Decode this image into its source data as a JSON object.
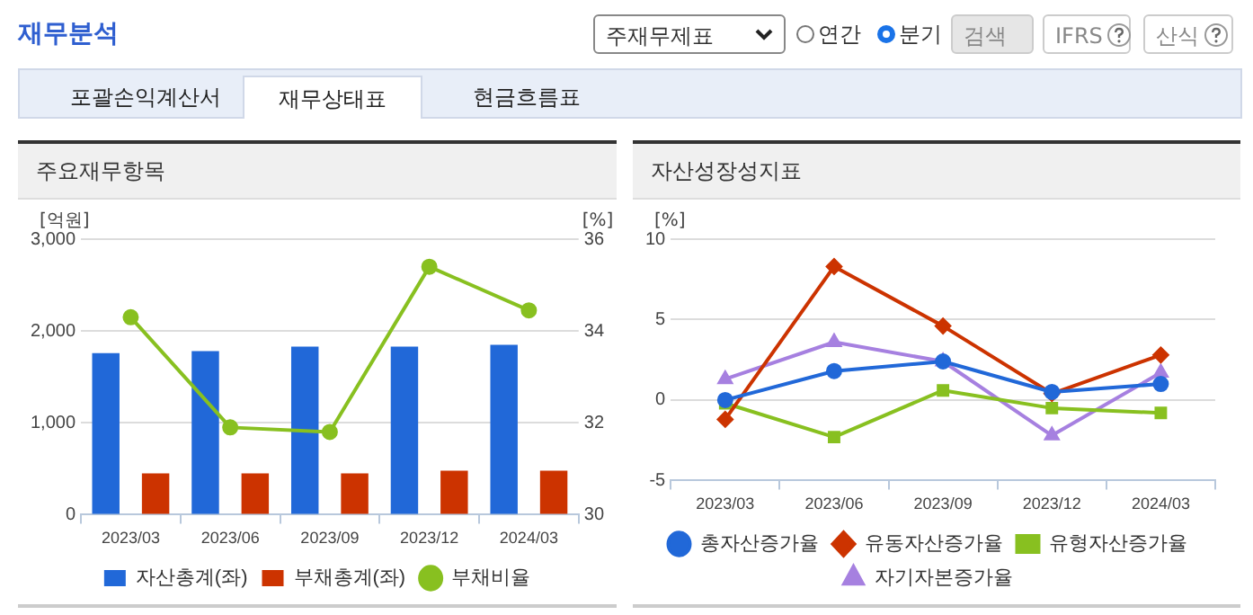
{
  "chart_data": [
    {
      "type": "other",
      "title": "재무분석",
      "annotations": [
        "주재무제표",
        "연간",
        "분기",
        "검색",
        "IFRS",
        "산식",
        "포괄손익계산서",
        "재무상태표",
        "현금흐름표"
      ]
    },
    {
      "type": "bar",
      "title": "주요재무항목",
      "ylabel": "[억원]",
      "y2label": "[%]",
      "categories": [
        "2023/03",
        "2023/06",
        "2023/09",
        "2023/12",
        "2024/03"
      ],
      "series": [
        {
          "name": "자산총계(좌)",
          "color": "#2168d8",
          "values": [
            1760,
            1780,
            1830,
            1830,
            1850
          ]
        },
        {
          "name": "부채총계(좌)",
          "color": "#cc3300",
          "values": [
            450,
            450,
            450,
            480,
            480
          ]
        },
        {
          "name": "부채비율",
          "type": "line",
          "axis": "y2",
          "marker": "circle",
          "color": "#88c020",
          "values": [
            34.3,
            31.9,
            31.8,
            35.4,
            34.45
          ]
        }
      ],
      "ylim": [
        0,
        3000
      ],
      "yticks": [
        0,
        {
          "value": 1000,
          "label": "1,000"
        },
        {
          "value": 2000,
          "label": "2,000"
        },
        {
          "value": 3000,
          "label": "3,000"
        }
      ],
      "y2lim": [
        30,
        36
      ],
      "y2ticks": [
        30,
        32,
        34,
        36
      ],
      "grid": "y",
      "legend": "bottom"
    },
    {
      "type": "line",
      "title": "자산성장성지표",
      "ylabel": "[%]",
      "categories": [
        "2023/03",
        "2023/06",
        "2023/09",
        "2023/12",
        "2024/03"
      ],
      "series": [
        {
          "name": "총자산증가율",
          "marker": "circle",
          "color": "#2168d8",
          "values": [
            0,
            1.8,
            2.4,
            0.5,
            1
          ]
        },
        {
          "name": "유동자산증가율",
          "marker": "diamond",
          "color": "#cc3300",
          "values": [
            -1.2,
            8.3,
            4.6,
            0.4,
            2.8
          ]
        },
        {
          "name": "유형자산증가율",
          "marker": "square",
          "color": "#88c020",
          "values": [
            -0.2,
            -2.3,
            0.6,
            -0.5,
            -0.8
          ]
        },
        {
          "name": "자기자본증가율",
          "marker": "triangle",
          "color": "#a680e0",
          "values": [
            1.3,
            3.6,
            2.4,
            -2.2,
            1.7
          ]
        }
      ],
      "ylim": [
        -5,
        10
      ],
      "yticks": [
        -5,
        0,
        5,
        10
      ],
      "grid": "y",
      "legend": "bottom"
    }
  ]
}
